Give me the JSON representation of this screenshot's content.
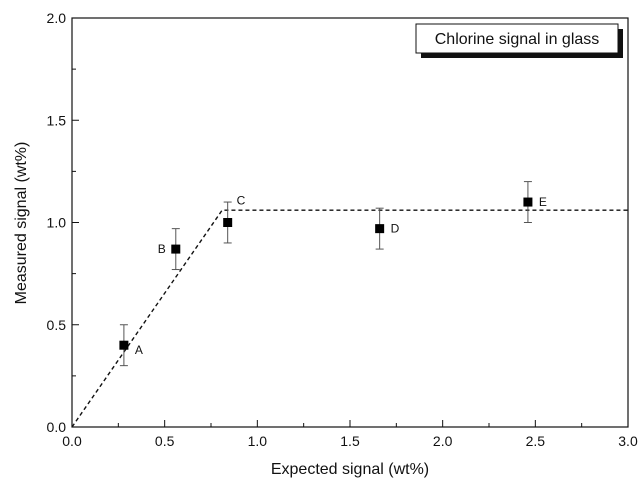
{
  "chart_data": {
    "type": "scatter",
    "xlabel": "Expected signal (wt%)",
    "ylabel": "Measured signal (wt%)",
    "xlim": [
      0.0,
      3.0
    ],
    "ylim": [
      0.0,
      2.0
    ],
    "x_ticks": [
      "0.0",
      "0.5",
      "1.0",
      "1.5",
      "2.0",
      "2.5",
      "3.0"
    ],
    "y_ticks": [
      "0.0",
      "0.5",
      "1.0",
      "1.5",
      "2.0"
    ],
    "legend_text": "Chlorine signal in glass",
    "legend_position": "top-right",
    "grid": false,
    "series": [
      {
        "points": [
          {
            "label": "A",
            "x": 0.28,
            "y": 0.4,
            "err": 0.1
          },
          {
            "label": "B",
            "x": 0.56,
            "y": 0.87,
            "err": 0.1
          },
          {
            "label": "C",
            "x": 0.84,
            "y": 1.0,
            "err": 0.1
          },
          {
            "label": "D",
            "x": 1.66,
            "y": 0.97,
            "err": 0.1
          },
          {
            "label": "E",
            "x": 2.46,
            "y": 1.1,
            "err": 0.1
          }
        ]
      }
    ],
    "reference_line": {
      "style": "dashed",
      "points": [
        [
          0.0,
          0.0
        ],
        [
          0.81,
          1.06
        ],
        [
          3.0,
          1.06
        ]
      ]
    }
  }
}
